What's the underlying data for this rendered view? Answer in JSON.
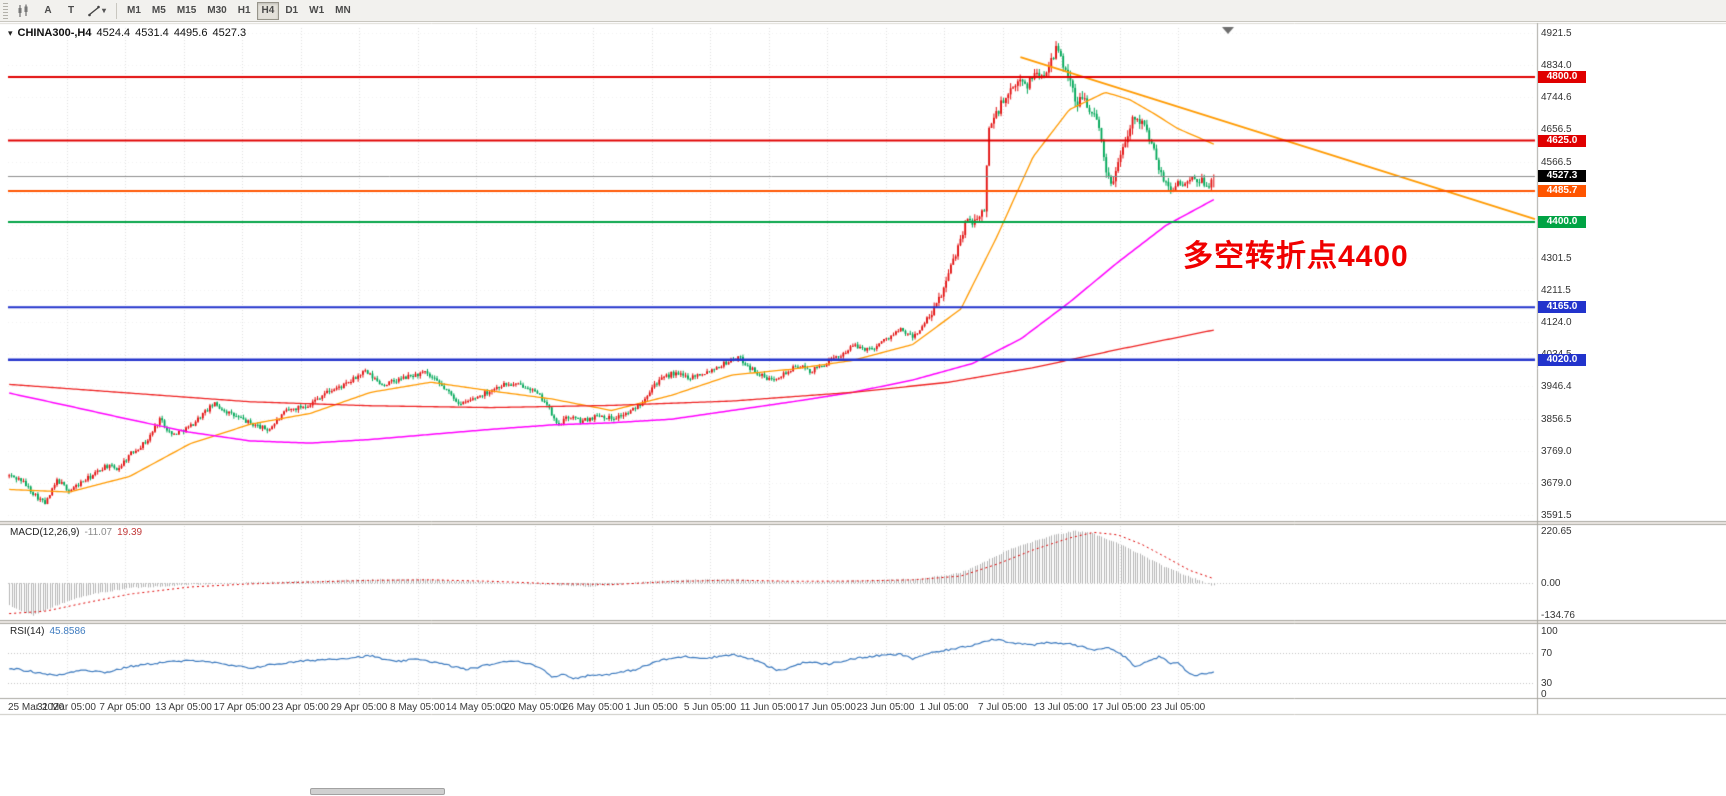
{
  "toolbar": {
    "tool_a": "A",
    "tool_t": "T",
    "timeframes": [
      "M1",
      "M5",
      "M15",
      "M30",
      "H1",
      "H4",
      "D1",
      "W1",
      "MN"
    ],
    "selected_timeframe": "H4"
  },
  "chart_title": {
    "collapse_icon": "▾",
    "symbol_tf": "CHINA300-,H4",
    "open": "4524.4",
    "high": "4531.4",
    "low": "4495.6",
    "close": "4527.3"
  },
  "indicators": {
    "macd": {
      "name": "MACD(12,26,9)",
      "value_main": "-11.07",
      "value_signal": "19.39"
    },
    "rsi": {
      "name": "RSI(14)",
      "value": "45.8586"
    }
  },
  "chart_data": {
    "type": "candlestick",
    "symbol": "CHINA300-",
    "timeframe": "H4",
    "visible_bars": 505,
    "x_ticks": [
      "25 Mar 2020",
      "31 Mar 05:00",
      "7 Apr 05:00",
      "13 Apr 05:00",
      "17 Apr 05:00",
      "23 Apr 05:00",
      "29 Apr 05:00",
      "8 May 05:00",
      "14 May 05:00",
      "20 May 05:00",
      "26 May 05:00",
      "1 Jun 05:00",
      "5 Jun 05:00",
      "11 Jun 05:00",
      "17 Jun 05:00",
      "23 Jun 05:00",
      "1 Jul 05:00",
      "7 Jul 05:00",
      "13 Jul 05:00",
      "17 Jul 05:00",
      "23 Jul 05:00"
    ],
    "main": {
      "ylim": [
        3575,
        4941
      ],
      "y_ticks": [
        "4921.5",
        "4834.0",
        "4744.6",
        "4656.5",
        "4566.5",
        "4478.9",
        "4391.1",
        "4301.5",
        "4211.5",
        "4124.0",
        "4034.5",
        "3946.4",
        "3856.5",
        "3769.0",
        "3679.0",
        "3591.5"
      ],
      "up_color": "#e31212",
      "down_color": "#00a859",
      "price_keypoints": [
        [
          0.0,
          3700
        ],
        [
          0.01,
          3688
        ],
        [
          0.02,
          3652
        ],
        [
          0.03,
          3622
        ],
        [
          0.04,
          3688
        ],
        [
          0.05,
          3658
        ],
        [
          0.06,
          3682
        ],
        [
          0.07,
          3702
        ],
        [
          0.08,
          3728
        ],
        [
          0.09,
          3718
        ],
        [
          0.1,
          3758
        ],
        [
          0.115,
          3798
        ],
        [
          0.125,
          3858
        ],
        [
          0.135,
          3812
        ],
        [
          0.15,
          3835
        ],
        [
          0.16,
          3868
        ],
        [
          0.17,
          3898
        ],
        [
          0.185,
          3868
        ],
        [
          0.2,
          3845
        ],
        [
          0.215,
          3826
        ],
        [
          0.23,
          3878
        ],
        [
          0.25,
          3898
        ],
        [
          0.262,
          3928
        ],
        [
          0.28,
          3952
        ],
        [
          0.295,
          3988
        ],
        [
          0.31,
          3950
        ],
        [
          0.33,
          3972
        ],
        [
          0.345,
          3984
        ],
        [
          0.36,
          3945
        ],
        [
          0.375,
          3896
        ],
        [
          0.39,
          3920
        ],
        [
          0.41,
          3952
        ],
        [
          0.43,
          3948
        ],
        [
          0.445,
          3905
        ],
        [
          0.455,
          3838
        ],
        [
          0.465,
          3864
        ],
        [
          0.475,
          3850
        ],
        [
          0.49,
          3868
        ],
        [
          0.5,
          3858
        ],
        [
          0.515,
          3874
        ],
        [
          0.525,
          3902
        ],
        [
          0.535,
          3952
        ],
        [
          0.55,
          3982
        ],
        [
          0.565,
          3972
        ],
        [
          0.58,
          3988
        ],
        [
          0.595,
          4012
        ],
        [
          0.605,
          4028
        ],
        [
          0.615,
          3998
        ],
        [
          0.63,
          3964
        ],
        [
          0.645,
          3984
        ],
        [
          0.655,
          4004
        ],
        [
          0.665,
          3988
        ],
        [
          0.675,
          4004
        ],
        [
          0.69,
          4032
        ],
        [
          0.7,
          4058
        ],
        [
          0.715,
          4048
        ],
        [
          0.73,
          4082
        ],
        [
          0.74,
          4102
        ],
        [
          0.75,
          4082
        ],
        [
          0.76,
          4118
        ],
        [
          0.768,
          4158
        ],
        [
          0.776,
          4218
        ],
        [
          0.784,
          4298
        ],
        [
          0.79,
          4358
        ],
        [
          0.796,
          4418
        ],
        [
          0.802,
          4392
        ],
        [
          0.808,
          4428
        ],
        [
          0.81,
          4438
        ],
        [
          0.813,
          4662
        ],
        [
          0.818,
          4688
        ],
        [
          0.824,
          4728
        ],
        [
          0.832,
          4758
        ],
        [
          0.84,
          4798
        ],
        [
          0.846,
          4778
        ],
        [
          0.852,
          4818
        ],
        [
          0.858,
          4795
        ],
        [
          0.864,
          4848
        ],
        [
          0.87,
          4878
        ],
        [
          0.876,
          4828
        ],
        [
          0.882,
          4788
        ],
        [
          0.886,
          4702
        ],
        [
          0.89,
          4758
        ],
        [
          0.895,
          4728
        ],
        [
          0.9,
          4698
        ],
        [
          0.905,
          4658
        ],
        [
          0.91,
          4558
        ],
        [
          0.915,
          4495
        ],
        [
          0.92,
          4558
        ],
        [
          0.925,
          4618
        ],
        [
          0.93,
          4662
        ],
        [
          0.935,
          4698
        ],
        [
          0.94,
          4678
        ],
        [
          0.945,
          4642
        ],
        [
          0.95,
          4598
        ],
        [
          0.955,
          4540
        ],
        [
          0.96,
          4505
        ],
        [
          0.965,
          4486
        ],
        [
          0.97,
          4514
        ],
        [
          0.975,
          4494
        ],
        [
          0.98,
          4520
        ],
        [
          0.985,
          4506
        ],
        [
          0.99,
          4516
        ],
        [
          0.995,
          4500
        ],
        [
          1.0,
          4527
        ]
      ],
      "ma": [
        {
          "name": "ma-fast-orange",
          "color": "#ff9a00",
          "width": 1.3,
          "points": [
            [
              0.0,
              3662
            ],
            [
              0.05,
              3655
            ],
            [
              0.1,
              3698
            ],
            [
              0.15,
              3788
            ],
            [
              0.2,
              3842
            ],
            [
              0.25,
              3872
            ],
            [
              0.3,
              3930
            ],
            [
              0.35,
              3958
            ],
            [
              0.4,
              3934
            ],
            [
              0.45,
              3912
            ],
            [
              0.5,
              3880
            ],
            [
              0.55,
              3922
            ],
            [
              0.6,
              3978
            ],
            [
              0.65,
              3994
            ],
            [
              0.7,
              4018
            ],
            [
              0.75,
              4062
            ],
            [
              0.79,
              4160
            ],
            [
              0.82,
              4360
            ],
            [
              0.85,
              4580
            ],
            [
              0.88,
              4710
            ],
            [
              0.91,
              4758
            ],
            [
              0.93,
              4738
            ],
            [
              0.95,
              4700
            ],
            [
              0.97,
              4658
            ],
            [
              1.0,
              4615
            ]
          ]
        },
        {
          "name": "ma-slow-magenta",
          "color": "#ff00ff",
          "width": 1.5,
          "points": [
            [
              0.0,
              3928
            ],
            [
              0.05,
              3892
            ],
            [
              0.1,
              3855
            ],
            [
              0.15,
              3820
            ],
            [
              0.2,
              3796
            ],
            [
              0.25,
              3790
            ],
            [
              0.3,
              3800
            ],
            [
              0.35,
              3814
            ],
            [
              0.4,
              3828
            ],
            [
              0.45,
              3840
            ],
            [
              0.5,
              3846
            ],
            [
              0.55,
              3856
            ],
            [
              0.6,
              3880
            ],
            [
              0.65,
              3904
            ],
            [
              0.7,
              3930
            ],
            [
              0.75,
              3964
            ],
            [
              0.8,
              4010
            ],
            [
              0.84,
              4078
            ],
            [
              0.88,
              4178
            ],
            [
              0.92,
              4288
            ],
            [
              0.96,
              4390
            ],
            [
              1.0,
              4462
            ]
          ]
        },
        {
          "name": "ma-long-red",
          "color": "#ee2222",
          "width": 1.3,
          "points": [
            [
              0.0,
              3952
            ],
            [
              0.1,
              3928
            ],
            [
              0.2,
              3904
            ],
            [
              0.3,
              3893
            ],
            [
              0.4,
              3888
            ],
            [
              0.5,
              3894
            ],
            [
              0.6,
              3906
            ],
            [
              0.7,
              3930
            ],
            [
              0.78,
              3958
            ],
            [
              0.85,
              3998
            ],
            [
              0.92,
              4048
            ],
            [
              1.0,
              4102
            ]
          ]
        }
      ],
      "trendline": {
        "color": "#ff9a00",
        "width": 1.8,
        "x1": 0.663,
        "p1": 4855,
        "x2": 1.0,
        "p2": 4408
      },
      "hlines": [
        {
          "price": 4800.0,
          "label": "4800.0",
          "color": "#e00000",
          "width": 2
        },
        {
          "price": 4625.0,
          "label": "4625.0",
          "color": "#e00000",
          "width": 2
        },
        {
          "price": 4485.7,
          "label": "4485.7",
          "color": "#ff5500",
          "width": 2
        },
        {
          "price": 4400.0,
          "label": "4400.0",
          "color": "#00a344",
          "width": 2
        },
        {
          "price": 4165.0,
          "label": "4165.0",
          "color": "#2233cc",
          "width": 2
        },
        {
          "price": 4020.0,
          "label": "4020.0",
          "color": "#2233cc",
          "width": 2.5
        }
      ],
      "bid": {
        "price": 4527.3,
        "label": "4527.3",
        "tag_bg": "#000000",
        "line_color": "#8c8c8c"
      },
      "annotation": {
        "text": "多空转折点4400",
        "color": "#f00000"
      }
    },
    "macd": {
      "label_ticks": [
        "220.65",
        "0.00",
        "-134.76"
      ],
      "tick_values": [
        220.65,
        0,
        -134.76
      ],
      "ylim": [
        -155,
        245
      ],
      "hist_color": "#b5b5b5",
      "signal_color": "#dd0000",
      "hist_keypoints": [
        [
          0.0,
          -95
        ],
        [
          0.01,
          -118
        ],
        [
          0.02,
          -135
        ],
        [
          0.03,
          -112
        ],
        [
          0.05,
          -72
        ],
        [
          0.07,
          -45
        ],
        [
          0.1,
          -20
        ],
        [
          0.15,
          -6
        ],
        [
          0.2,
          2
        ],
        [
          0.25,
          9
        ],
        [
          0.3,
          15
        ],
        [
          0.33,
          18
        ],
        [
          0.36,
          12
        ],
        [
          0.4,
          5
        ],
        [
          0.45,
          -7
        ],
        [
          0.48,
          -13
        ],
        [
          0.5,
          -8
        ],
        [
          0.53,
          6
        ],
        [
          0.56,
          14
        ],
        [
          0.6,
          16
        ],
        [
          0.63,
          9
        ],
        [
          0.66,
          5
        ],
        [
          0.7,
          10
        ],
        [
          0.73,
          14
        ],
        [
          0.76,
          20
        ],
        [
          0.79,
          45
        ],
        [
          0.81,
          92
        ],
        [
          0.83,
          142
        ],
        [
          0.85,
          176
        ],
        [
          0.87,
          206
        ],
        [
          0.885,
          220
        ],
        [
          0.9,
          208
        ],
        [
          0.92,
          168
        ],
        [
          0.94,
          118
        ],
        [
          0.96,
          66
        ],
        [
          0.98,
          26
        ],
        [
          1.0,
          -11
        ]
      ],
      "signal_keypoints": [
        [
          0.0,
          -128
        ],
        [
          0.03,
          -118
        ],
        [
          0.06,
          -86
        ],
        [
          0.1,
          -46
        ],
        [
          0.15,
          -16
        ],
        [
          0.2,
          -3
        ],
        [
          0.25,
          5
        ],
        [
          0.3,
          12
        ],
        [
          0.35,
          14
        ],
        [
          0.4,
          8
        ],
        [
          0.45,
          -2
        ],
        [
          0.5,
          -6
        ],
        [
          0.55,
          7
        ],
        [
          0.6,
          13
        ],
        [
          0.65,
          8
        ],
        [
          0.7,
          9
        ],
        [
          0.75,
          14
        ],
        [
          0.79,
          30
        ],
        [
          0.82,
          80
        ],
        [
          0.85,
          140
        ],
        [
          0.88,
          190
        ],
        [
          0.9,
          214
        ],
        [
          0.92,
          204
        ],
        [
          0.94,
          164
        ],
        [
          0.96,
          110
        ],
        [
          0.98,
          54
        ],
        [
          1.0,
          19
        ]
      ]
    },
    "rsi": {
      "label_ticks": [
        "100",
        "70",
        "30",
        "0"
      ],
      "tick_values": [
        100,
        70,
        30,
        0
      ],
      "levels": [
        70,
        30
      ],
      "color": "#3e7bbf",
      "keypoints": [
        [
          0.0,
          50
        ],
        [
          0.02,
          45
        ],
        [
          0.04,
          40
        ],
        [
          0.06,
          48
        ],
        [
          0.08,
          44
        ],
        [
          0.1,
          52
        ],
        [
          0.13,
          58
        ],
        [
          0.16,
          60
        ],
        [
          0.18,
          54
        ],
        [
          0.2,
          50
        ],
        [
          0.22,
          55
        ],
        [
          0.25,
          60
        ],
        [
          0.28,
          63
        ],
        [
          0.3,
          66
        ],
        [
          0.32,
          58
        ],
        [
          0.34,
          62
        ],
        [
          0.36,
          55
        ],
        [
          0.38,
          48
        ],
        [
          0.4,
          55
        ],
        [
          0.42,
          60
        ],
        [
          0.44,
          52
        ],
        [
          0.45,
          38
        ],
        [
          0.46,
          42
        ],
        [
          0.47,
          36
        ],
        [
          0.48,
          40
        ],
        [
          0.5,
          42
        ],
        [
          0.52,
          48
        ],
        [
          0.54,
          60
        ],
        [
          0.56,
          65
        ],
        [
          0.58,
          63
        ],
        [
          0.6,
          68
        ],
        [
          0.62,
          60
        ],
        [
          0.63,
          52
        ],
        [
          0.64,
          46
        ],
        [
          0.66,
          58
        ],
        [
          0.68,
          55
        ],
        [
          0.7,
          62
        ],
        [
          0.72,
          66
        ],
        [
          0.74,
          68
        ],
        [
          0.75,
          62
        ],
        [
          0.76,
          68
        ],
        [
          0.78,
          74
        ],
        [
          0.8,
          80
        ],
        [
          0.81,
          86
        ],
        [
          0.82,
          88
        ],
        [
          0.83,
          84
        ],
        [
          0.85,
          80
        ],
        [
          0.86,
          83
        ],
        [
          0.88,
          82
        ],
        [
          0.89,
          78
        ],
        [
          0.9,
          74
        ],
        [
          0.91,
          77
        ],
        [
          0.92,
          72
        ],
        [
          0.93,
          60
        ],
        [
          0.935,
          50
        ],
        [
          0.94,
          55
        ],
        [
          0.95,
          62
        ],
        [
          0.955,
          65
        ],
        [
          0.96,
          60
        ],
        [
          0.965,
          55
        ],
        [
          0.97,
          58
        ],
        [
          0.975,
          50
        ],
        [
          0.98,
          42
        ],
        [
          0.985,
          40
        ],
        [
          0.99,
          44
        ],
        [
          0.995,
          43
        ],
        [
          1.0,
          45.86
        ]
      ]
    }
  }
}
